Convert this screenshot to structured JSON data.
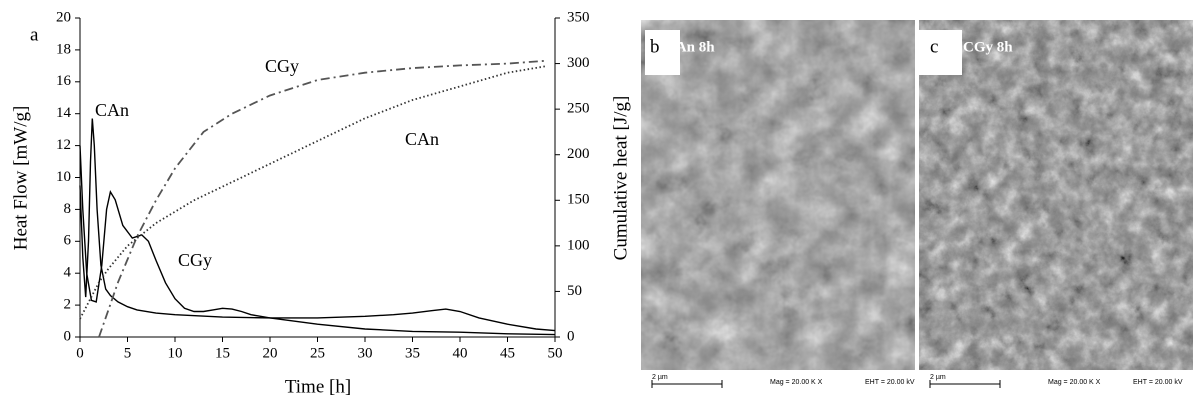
{
  "chart_data": {
    "type": "line",
    "panel_label": "a",
    "x_label": "Time [h]",
    "y_label": "Heat Flow [mW/g]",
    "y2_label": "Cumulative heat [J/g]",
    "xlim": [
      0,
      50
    ],
    "xticks": [
      0,
      5,
      10,
      15,
      20,
      25,
      30,
      35,
      40,
      45,
      50
    ],
    "ylim": [
      0,
      20
    ],
    "yticks": [
      0,
      2,
      4,
      6,
      8,
      10,
      12,
      14,
      16,
      18,
      20
    ],
    "y2lim": [
      0,
      350
    ],
    "y2ticks": [
      0,
      50,
      100,
      150,
      200,
      250,
      300,
      350
    ],
    "series": [
      {
        "name": "CAn",
        "color": "#000000",
        "style": "solid",
        "x": [
          0,
          0.3,
          0.6,
          0.9,
          1.1,
          1.3,
          1.5,
          1.8,
          2.2,
          2.7,
          3.2,
          4,
          5,
          6,
          8,
          10,
          15,
          20,
          25,
          30,
          33,
          35,
          37,
          38.5,
          40,
          42,
          45,
          48,
          50
        ],
        "values": [
          9.5,
          5,
          2.5,
          6,
          11,
          13.7,
          12,
          8,
          4.5,
          3,
          2.6,
          2.2,
          1.9,
          1.7,
          1.5,
          1.4,
          1.25,
          1.2,
          1.2,
          1.3,
          1.4,
          1.5,
          1.65,
          1.75,
          1.6,
          1.2,
          0.8,
          0.5,
          0.4
        ]
      },
      {
        "name": "CGy",
        "color": "#000000",
        "style": "solid",
        "x": [
          0,
          0.3,
          0.7,
          1.2,
          1.7,
          2.3,
          2.8,
          3.2,
          3.7,
          4.5,
          5.5,
          6.5,
          7.2,
          8,
          9,
          10,
          11,
          12,
          13,
          14,
          15,
          16,
          17,
          18,
          20,
          25,
          30,
          35,
          40,
          45,
          50
        ],
        "values": [
          12,
          8,
          4,
          2.3,
          2.2,
          4.5,
          8,
          9.1,
          8.6,
          7,
          6.2,
          6.4,
          6,
          4.8,
          3.4,
          2.4,
          1.8,
          1.6,
          1.6,
          1.7,
          1.8,
          1.75,
          1.6,
          1.4,
          1.2,
          0.8,
          0.5,
          0.35,
          0.3,
          0.2,
          0.15
        ]
      },
      {
        "name": "CGy",
        "color": "#555555",
        "style": "dashdot",
        "axis": "y2",
        "x": [
          2,
          3,
          4,
          5,
          6,
          8,
          10,
          13,
          16,
          20,
          25,
          30,
          35,
          40,
          45,
          49
        ],
        "values": [
          0,
          30,
          60,
          85,
          110,
          150,
          185,
          225,
          245,
          265,
          282,
          290,
          295,
          298,
          300,
          303
        ]
      },
      {
        "name": "CAn",
        "color": "#333333",
        "style": "dotted",
        "axis": "y2",
        "x": [
          0,
          1,
          2,
          3,
          5,
          8,
          12,
          16,
          20,
          25,
          30,
          35,
          40,
          45,
          49
        ],
        "values": [
          20,
          40,
          60,
          75,
          100,
          125,
          150,
          170,
          190,
          215,
          240,
          260,
          275,
          290,
          297
        ]
      }
    ]
  },
  "panels": [
    {
      "label": "b",
      "caption": "CAn 8h",
      "scale": "2 µm",
      "mag": "Mag =  20.00 K X",
      "eht": "EHT = 20.00 kV"
    },
    {
      "label": "c",
      "caption": "CGy 8h",
      "scale": "2 µm",
      "mag": "Mag =  20.00 K X",
      "eht": "EHT = 20.00 kV"
    }
  ]
}
